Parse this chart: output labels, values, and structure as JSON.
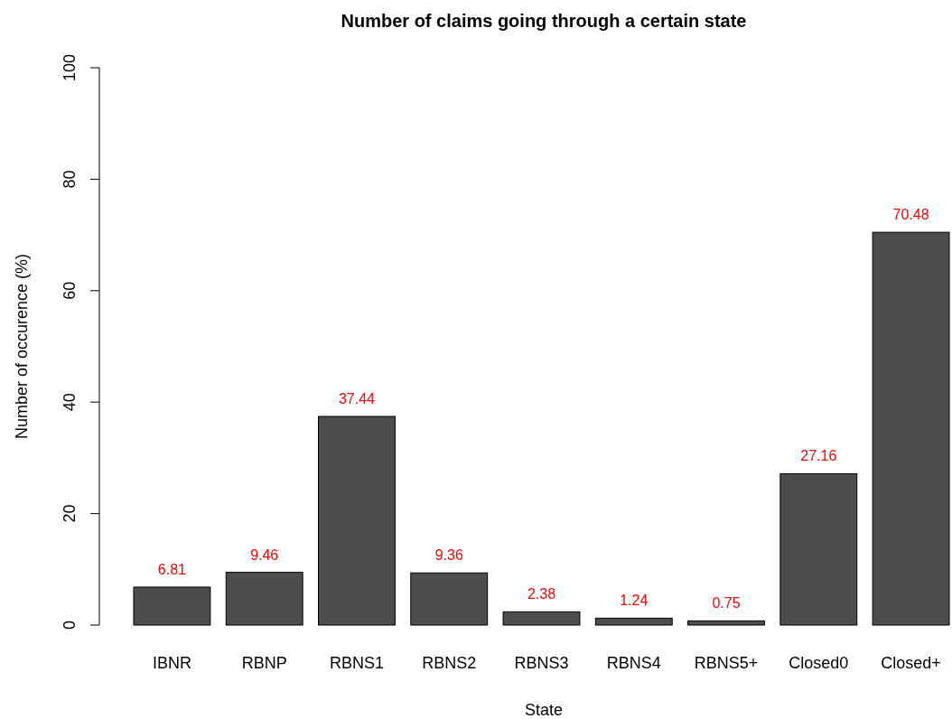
{
  "chart_data": {
    "type": "bar",
    "title": "Number of claims going through a certain state",
    "xlabel": "State",
    "ylabel": "Number of occurence (%)",
    "categories": [
      "IBNR",
      "RBNP",
      "RBNS1",
      "RBNS2",
      "RBNS3",
      "RBNS4",
      "RBNS5+",
      "Closed0",
      "Closed+"
    ],
    "values": [
      6.81,
      9.46,
      37.44,
      9.36,
      2.38,
      1.24,
      0.75,
      27.16,
      70.48
    ],
    "color": "#4d4d4d",
    "data_labels": true,
    "ylim": [
      0,
      100
    ],
    "yticks": [
      0,
      20,
      40,
      60,
      80,
      100
    ],
    "grid": false
  }
}
